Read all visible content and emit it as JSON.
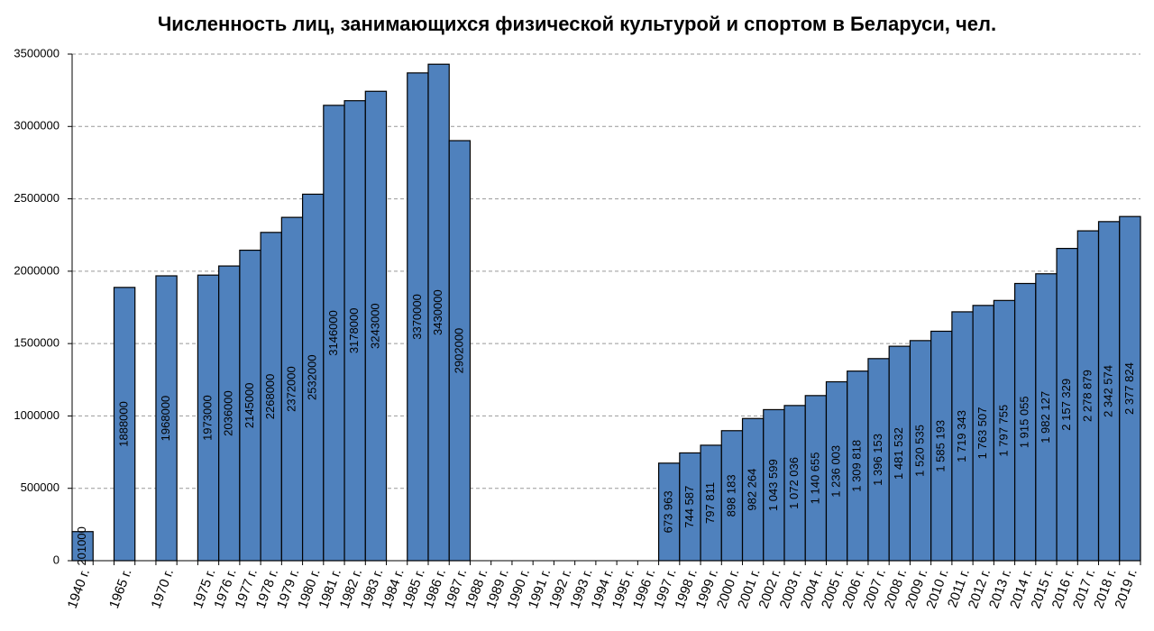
{
  "chart_data": {
    "type": "bar",
    "title": "Численность лиц, занимающихся физической культурой и спортом в Беларуси, чел.",
    "categories": [
      "1940 г.",
      null,
      "1965 г.",
      null,
      "1970 г.",
      null,
      "1975 г.",
      "1976 г.",
      "1977 г.",
      "1978 г.",
      "1979 г.",
      "1980 г.",
      "1981 г.",
      "1982 г.",
      "1983 г.",
      "1984 г.",
      "1985 г.",
      "1986 г.",
      "1987 г.",
      "1988 г.",
      "1989 г.",
      "1990 г.",
      "1991 г.",
      "1992 г.",
      "1993 г.",
      "1994 г.",
      "1995 г.",
      "1996 г.",
      "1997 г.",
      "1998 г.",
      "1999 г.",
      "2000 г.",
      "2001 г.",
      "2002 г.",
      "2003 г.",
      "2004 г.",
      "2005 г.",
      "2006 г.",
      "2007 г.",
      "2008 г.",
      "2009 г.",
      "2010 г.",
      "2011 г.",
      "2012 г.",
      "2013 г.",
      "2014 г.",
      "2015 г.",
      "2016 г.",
      "2017 г.",
      "2018 г.",
      "2019 г."
    ],
    "values": [
      201000,
      null,
      1888000,
      null,
      1968000,
      null,
      1973000,
      2036000,
      2145000,
      2268000,
      2372000,
      2532000,
      3146000,
      3178000,
      3243000,
      null,
      3370000,
      3430000,
      2902000,
      null,
      null,
      null,
      null,
      null,
      null,
      null,
      null,
      null,
      673963,
      744587,
      797811,
      898183,
      982264,
      1043599,
      1072036,
      1140655,
      1236003,
      1309818,
      1396153,
      1481532,
      1520535,
      1585193,
      1719343,
      1763507,
      1797755,
      1915055,
      1982127,
      2157329,
      2278879,
      2342574,
      2377824
    ],
    "value_labels": [
      "201000",
      null,
      "1888000",
      null,
      "1968000",
      null,
      "1973000",
      "2036000",
      "2145000",
      "2268000",
      "2372000",
      "2532000",
      "3146000",
      "3178000",
      "3243000",
      null,
      "3370000",
      "3430000",
      "2902000",
      null,
      null,
      null,
      null,
      null,
      null,
      null,
      null,
      null,
      "673 963",
      "744 587",
      "797 811",
      "898 183",
      "982 264",
      "1 043 599",
      "1 072 036",
      "1 140 655",
      "1 236 003",
      "1 309 818",
      "1 396 153",
      "1 481 532",
      "1 520 535",
      "1 585 193",
      "1 719 343",
      "1 763 507",
      "1 797 755",
      "1 915 055",
      "1 982 127",
      "2 157 329",
      "2 278 879",
      "2 342 574",
      "2 377 824"
    ],
    "color": "#4f81bd",
    "ylim": [
      0,
      3500000
    ],
    "yticks": [
      0,
      500000,
      1000000,
      1500000,
      2000000,
      2500000,
      3000000,
      3500000
    ],
    "grid": true
  }
}
